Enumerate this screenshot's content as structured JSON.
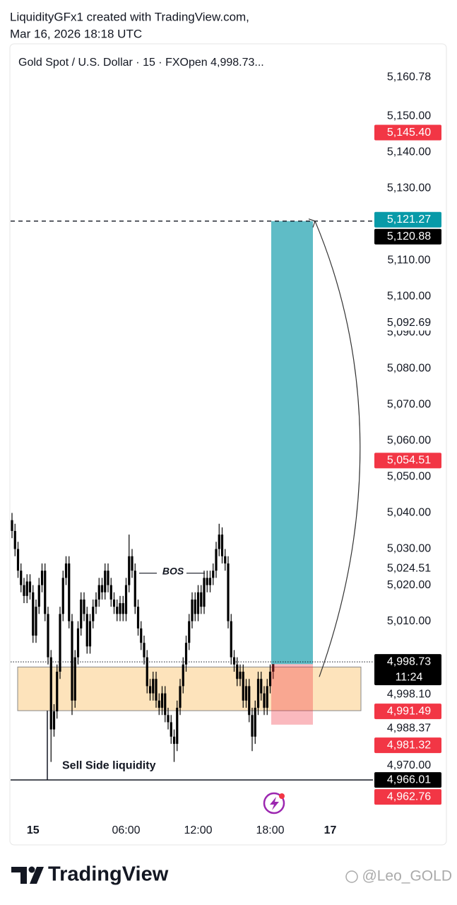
{
  "chart_data": {
    "type": "candlestick",
    "credit": "LiquidityGFx1 created with TradingView.com,",
    "date": "Mar 16, 2026 18:18 UTC",
    "title": "Gold Spot / U.S. Dollar · 15 · FXOpen  4,998.73...",
    "up_color": "#000000",
    "down_color": "#000000",
    "ylim": [
      4948,
      5170
    ],
    "yticks": [
      {
        "value": 5150,
        "label": "5,150.00"
      },
      {
        "value": 5140,
        "label": "5,140.00"
      },
      {
        "value": 5130,
        "label": "5,130.00"
      },
      {
        "value": 5110,
        "label": "5,110.00"
      },
      {
        "value": 5100,
        "label": "5,100.00"
      },
      {
        "value": 5090,
        "label": "5,090.00"
      },
      {
        "value": 5080,
        "label": "5,080.00"
      },
      {
        "value": 5070,
        "label": "5,070.00"
      },
      {
        "value": 5060,
        "label": "5,060.00"
      },
      {
        "value": 5050,
        "label": "5,050.00"
      },
      {
        "value": 5040,
        "label": "5,040.00"
      },
      {
        "value": 5030,
        "label": "5,030.00"
      },
      {
        "value": 5020,
        "label": "5,020.00"
      },
      {
        "value": 5010,
        "label": "5,010.00"
      },
      {
        "value": 4970,
        "label": "4,970.00"
      }
    ],
    "price_labels": [
      {
        "value": 5160.78,
        "label": "5,160.78",
        "bg": "#ffffff",
        "fg": "#131722"
      },
      {
        "value": 5145.4,
        "label": "5,145.40",
        "bg": "#f23645",
        "fg": "#ffffff"
      },
      {
        "value": 5121.27,
        "label": "5,121.27",
        "bg": "#089aa8",
        "fg": "#ffffff"
      },
      {
        "value": 5120.88,
        "label": "5,120.88",
        "bg": "#000000",
        "fg": "#ffffff"
      },
      {
        "value": 5092.69,
        "label": "5,092.69",
        "bg": "#ffffff",
        "fg": "#131722"
      },
      {
        "value": 5054.51,
        "label": "5,054.51",
        "bg": "#f23645",
        "fg": "#ffffff"
      },
      {
        "value": 5024.51,
        "label": "5,024.51",
        "bg": "#ffffff",
        "fg": "#131722"
      },
      {
        "value": 4998.73,
        "label": "4,998.73",
        "bg": "#000000",
        "fg": "#ffffff",
        "countdown": "11:24"
      },
      {
        "value": 4998.1,
        "label": "4,998.10",
        "bg": "#ffffff",
        "fg": "#131722"
      },
      {
        "value": 4991.49,
        "label": "4,991.49",
        "bg": "#f23645",
        "fg": "#ffffff"
      },
      {
        "value": 4988.37,
        "label": "4,988.37",
        "bg": "#ffffff",
        "fg": "#131722"
      },
      {
        "value": 4981.32,
        "label": "4,981.32",
        "bg": "#f23645",
        "fg": "#ffffff"
      },
      {
        "value": 4966.01,
        "label": "4,966.01",
        "bg": "#000000",
        "fg": "#ffffff"
      },
      {
        "value": 4962.76,
        "label": "4,962.76",
        "bg": "#f23645",
        "fg": "#ffffff"
      }
    ],
    "xticks": [
      {
        "value": 7,
        "label": "15"
      },
      {
        "value": 38,
        "label": "06:00"
      },
      {
        "value": 62,
        "label": "12:00"
      },
      {
        "value": 86,
        "label": "18:00"
      },
      {
        "value": 106,
        "label": "17"
      }
    ],
    "last_price": 4998.73,
    "zone": {
      "top": 4997.3,
      "bottom": 4985.2,
      "color": "#fde3bb"
    },
    "long_position": {
      "entry": 4998.1,
      "target": 5120.88,
      "stop": 4981.32,
      "target_color": "#5fbcc6",
      "stop_color": "#f23645"
    },
    "bos": {
      "label": "BOS",
      "value": 5023.3
    },
    "liquidity": {
      "label": "Sell Side liquidity",
      "value": 4966.01
    },
    "ohlc": [
      [
        5038,
        5040,
        5033,
        5035
      ],
      [
        5035,
        5037,
        5028,
        5030
      ],
      [
        5030,
        5032,
        5022,
        5024
      ],
      [
        5024,
        5026,
        5018,
        5020
      ],
      [
        5020,
        5022,
        5015,
        5017
      ],
      [
        5017,
        5023,
        5015,
        5021
      ],
      [
        5021,
        5023,
        5016,
        5018
      ],
      [
        5018,
        5020,
        5004,
        5006
      ],
      [
        5006,
        5016,
        5004,
        5014
      ],
      [
        5014,
        5022,
        5012,
        5020
      ],
      [
        5020,
        5026,
        5018,
        5024
      ],
      [
        5024,
        5026,
        5010,
        5012
      ],
      [
        5012,
        5014,
        4998,
        5000
      ],
      [
        5000,
        5002,
        4971,
        4980
      ],
      [
        4980,
        4987,
        4978,
        4985
      ],
      [
        4985,
        4998,
        4983,
        4996
      ],
      [
        4996,
        5014,
        4994,
        5012
      ],
      [
        5012,
        5024,
        5010,
        5022
      ],
      [
        5022,
        5028,
        5020,
        5026
      ],
      [
        5026,
        5028,
        5008,
        5010
      ],
      [
        5010,
        5012,
        4984,
        4988
      ],
      [
        4988,
        5002,
        4986,
        5000
      ],
      [
        5000,
        5010,
        4998,
        5008
      ],
      [
        5008,
        5018,
        5006,
        5016
      ],
      [
        5016,
        5018,
        5010,
        5012
      ],
      [
        5012,
        5014,
        5001,
        5003
      ],
      [
        5003,
        5012,
        5001,
        5010
      ],
      [
        5010,
        5016,
        5008,
        5014
      ],
      [
        5014,
        5018,
        5012,
        5016
      ],
      [
        5016,
        5022,
        5014,
        5020
      ],
      [
        5020,
        5022,
        5016,
        5018
      ],
      [
        5018,
        5026,
        5016,
        5024
      ],
      [
        5024,
        5026,
        5018,
        5020
      ],
      [
        5020,
        5022,
        5014,
        5016
      ],
      [
        5016,
        5018,
        5012,
        5014
      ],
      [
        5014,
        5016,
        5010,
        5012
      ],
      [
        5012,
        5017,
        5010,
        5015
      ],
      [
        5015,
        5017,
        5010,
        5012
      ],
      [
        5012,
        5022,
        5010,
        5020
      ],
      [
        5020,
        5034,
        5018,
        5028
      ],
      [
        5028,
        5030,
        5022,
        5024
      ],
      [
        5024,
        5026,
        5012,
        5014
      ],
      [
        5014,
        5016,
        5006,
        5008
      ],
      [
        5008,
        5010,
        5002,
        5004
      ],
      [
        5004,
        5006,
        4998,
        5000
      ],
      [
        5000,
        5002,
        4990,
        4992
      ],
      [
        4992,
        4994,
        4988,
        4990
      ],
      [
        4990,
        4996,
        4988,
        4994
      ],
      [
        4994,
        4996,
        4986,
        4988
      ],
      [
        4988,
        4990,
        4984,
        4986
      ],
      [
        4986,
        4992,
        4984,
        4990
      ],
      [
        4990,
        4992,
        4982,
        4984
      ],
      [
        4984,
        4986,
        4980,
        4982
      ],
      [
        4982,
        4984,
        4976,
        4978
      ],
      [
        4978,
        4980,
        4971,
        4976
      ],
      [
        4976,
        4988,
        4974,
        4986
      ],
      [
        4986,
        4994,
        4984,
        4992
      ],
      [
        4992,
        5000,
        4990,
        4998
      ],
      [
        4998,
        5006,
        4996,
        5004
      ],
      [
        5004,
        5012,
        5002,
        5010
      ],
      [
        5010,
        5018,
        5008,
        5016
      ],
      [
        5016,
        5018,
        5010,
        5012
      ],
      [
        5012,
        5020,
        5010,
        5018
      ],
      [
        5018,
        5020,
        5012,
        5014
      ],
      [
        5014,
        5024,
        5012,
        5022
      ],
      [
        5022,
        5024,
        5018,
        5020
      ],
      [
        5020,
        5024,
        5018,
        5022
      ],
      [
        5022,
        5026,
        5020,
        5024
      ],
      [
        5024,
        5032,
        5022,
        5030
      ],
      [
        5030,
        5037,
        5028,
        5034
      ],
      [
        5034,
        5036,
        5026,
        5028
      ],
      [
        5028,
        5030,
        5024,
        5026
      ],
      [
        5026,
        5028,
        5008,
        5010
      ],
      [
        5010,
        5012,
        4998,
        5000
      ],
      [
        5000,
        5002,
        4996,
        4998
      ],
      [
        4998,
        5000,
        4992,
        4994
      ],
      [
        4994,
        4998,
        4992,
        4996
      ],
      [
        4996,
        4998,
        4986,
        4988
      ],
      [
        4988,
        4994,
        4986,
        4992
      ],
      [
        4992,
        4994,
        4982,
        4984
      ],
      [
        4984,
        4986,
        4974,
        4978
      ],
      [
        4978,
        4988,
        4976,
        4986
      ],
      [
        4986,
        4996,
        4984,
        4994
      ],
      [
        4994,
        4996,
        4988,
        4990
      ],
      [
        4990,
        4992,
        4984,
        4986
      ],
      [
        4986,
        4994,
        4984,
        4992
      ],
      [
        4992,
        4998,
        4990,
        4996
      ],
      [
        4996,
        5001,
        4994,
        4998.73
      ]
    ],
    "brand": "TradingView",
    "watermark": "@Leo_GOLD"
  }
}
